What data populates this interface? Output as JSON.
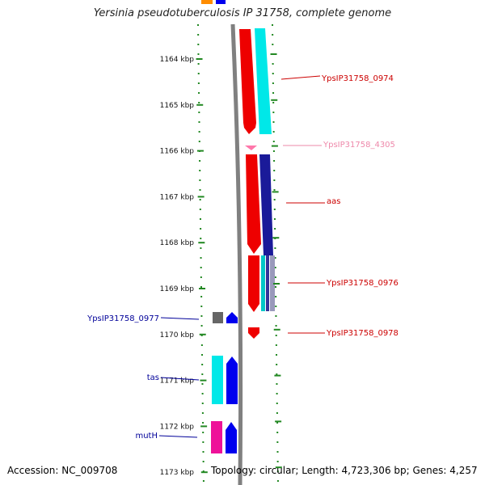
{
  "title": "Yersinia pseudotuberculosis IP 31758, complete genome",
  "accession": "Accession: NC_009708",
  "topology": "Topology: circular; Length: 4,723,306 bp; Genes: 4,257",
  "axis": {
    "unit": "kbp",
    "ticks": [
      "1164 kbp",
      "1165 kbp",
      "1166 kbp",
      "1167 kbp",
      "1168 kbp",
      "1169 kbp",
      "1170 kbp",
      "1171 kbp",
      "1172 kbp",
      "1173 kbp"
    ]
  },
  "colors": {
    "forward_label": "#cc0000",
    "forward_label_light": "#ee88aa",
    "reverse_label": "#000099",
    "tick": "#228822",
    "backbone": "#808080"
  },
  "genes_right": [
    {
      "name": "YpsIP31758_0974",
      "color": "#cc0000"
    },
    {
      "name": "YpsIP31758_4305",
      "color": "#ee88aa"
    },
    {
      "name": "aas",
      "color": "#cc0000"
    },
    {
      "name": "YpsIP31758_0976",
      "color": "#cc0000"
    },
    {
      "name": "YpsIP31758_0978",
      "color": "#cc0000"
    }
  ],
  "genes_left": [
    {
      "name": "YpsIP31758_0977",
      "color": "#000099"
    },
    {
      "name": "tas",
      "color": "#000099"
    },
    {
      "name": "mutH",
      "color": "#000099"
    }
  ]
}
